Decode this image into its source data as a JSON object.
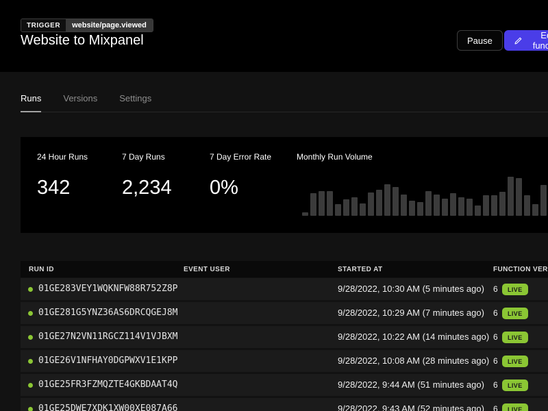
{
  "header": {
    "trigger_label": "TRIGGER",
    "trigger_event": "website/page.viewed",
    "title": "Website to Mixpanel",
    "pause_label": "Pause",
    "edit_label": "Edit function"
  },
  "tabs": [
    {
      "label": "Runs",
      "active": true
    },
    {
      "label": "Versions",
      "active": false
    },
    {
      "label": "Settings",
      "active": false
    }
  ],
  "stats": [
    {
      "label": "24 Hour Runs",
      "value": "342"
    },
    {
      "label": "7 Day Runs",
      "value": "2,234"
    },
    {
      "label": "7 Day Error Rate",
      "value": "0%"
    }
  ],
  "chart_data": {
    "type": "bar",
    "title": "Monthly Run Volume",
    "unit": "relative-height-percent (no axis labels shown)",
    "values": [
      9,
      58,
      64,
      64,
      30,
      42,
      47,
      32,
      59,
      67,
      81,
      73,
      55,
      38,
      35,
      64,
      55,
      44,
      58,
      48,
      44,
      27,
      53,
      52,
      61,
      100,
      96,
      52,
      30,
      79
    ],
    "xlabel": "",
    "ylabel": "",
    "grid": false,
    "legend": false
  },
  "table": {
    "columns": [
      "RUN ID",
      "EVENT USER",
      "STARTED AT",
      "FUNCTION VERSION"
    ],
    "rows": [
      {
        "status": "live",
        "run_id": "01GE283VEY1WQKNFW88R752Z8P",
        "event_user": "",
        "started_at": "9/28/2022, 10:30 AM (5 minutes ago)",
        "version": "6",
        "badge": "LIVE"
      },
      {
        "status": "live",
        "run_id": "01GE281G5YNZ36AS6DRCQGEJ8M",
        "event_user": "",
        "started_at": "9/28/2022, 10:29 AM (7 minutes ago)",
        "version": "6",
        "badge": "LIVE"
      },
      {
        "status": "live",
        "run_id": "01GE27N2VN11RGCZ114V1VJBXM",
        "event_user": "",
        "started_at": "9/28/2022, 10:22 AM (14 minutes ago)",
        "version": "6",
        "badge": "LIVE"
      },
      {
        "status": "live",
        "run_id": "01GE26V1NFHAY0DGPWXV1E1KPP",
        "event_user": "",
        "started_at": "9/28/2022, 10:08 AM (28 minutes ago)",
        "version": "6",
        "badge": "LIVE"
      },
      {
        "status": "live",
        "run_id": "01GE25FR3FZMQZTE4GKBDAAT4Q",
        "event_user": "",
        "started_at": "9/28/2022, 9:44 AM (51 minutes ago)",
        "version": "6",
        "badge": "LIVE"
      },
      {
        "status": "live",
        "run_id": "01GE25DWE7XDK1XW00XE087A66",
        "event_user": "",
        "started_at": "9/28/2022, 9:43 AM (52 minutes ago)",
        "version": "6",
        "badge": "LIVE"
      }
    ]
  },
  "colors": {
    "accent_button": "#4a3de8",
    "live_green": "#8bc634",
    "status_dot_green": "#8bc634",
    "bar_gray": "#3b3b3b",
    "card_black": "#000000",
    "page_background": "#121212",
    "row_background": "#1b1b1b"
  }
}
